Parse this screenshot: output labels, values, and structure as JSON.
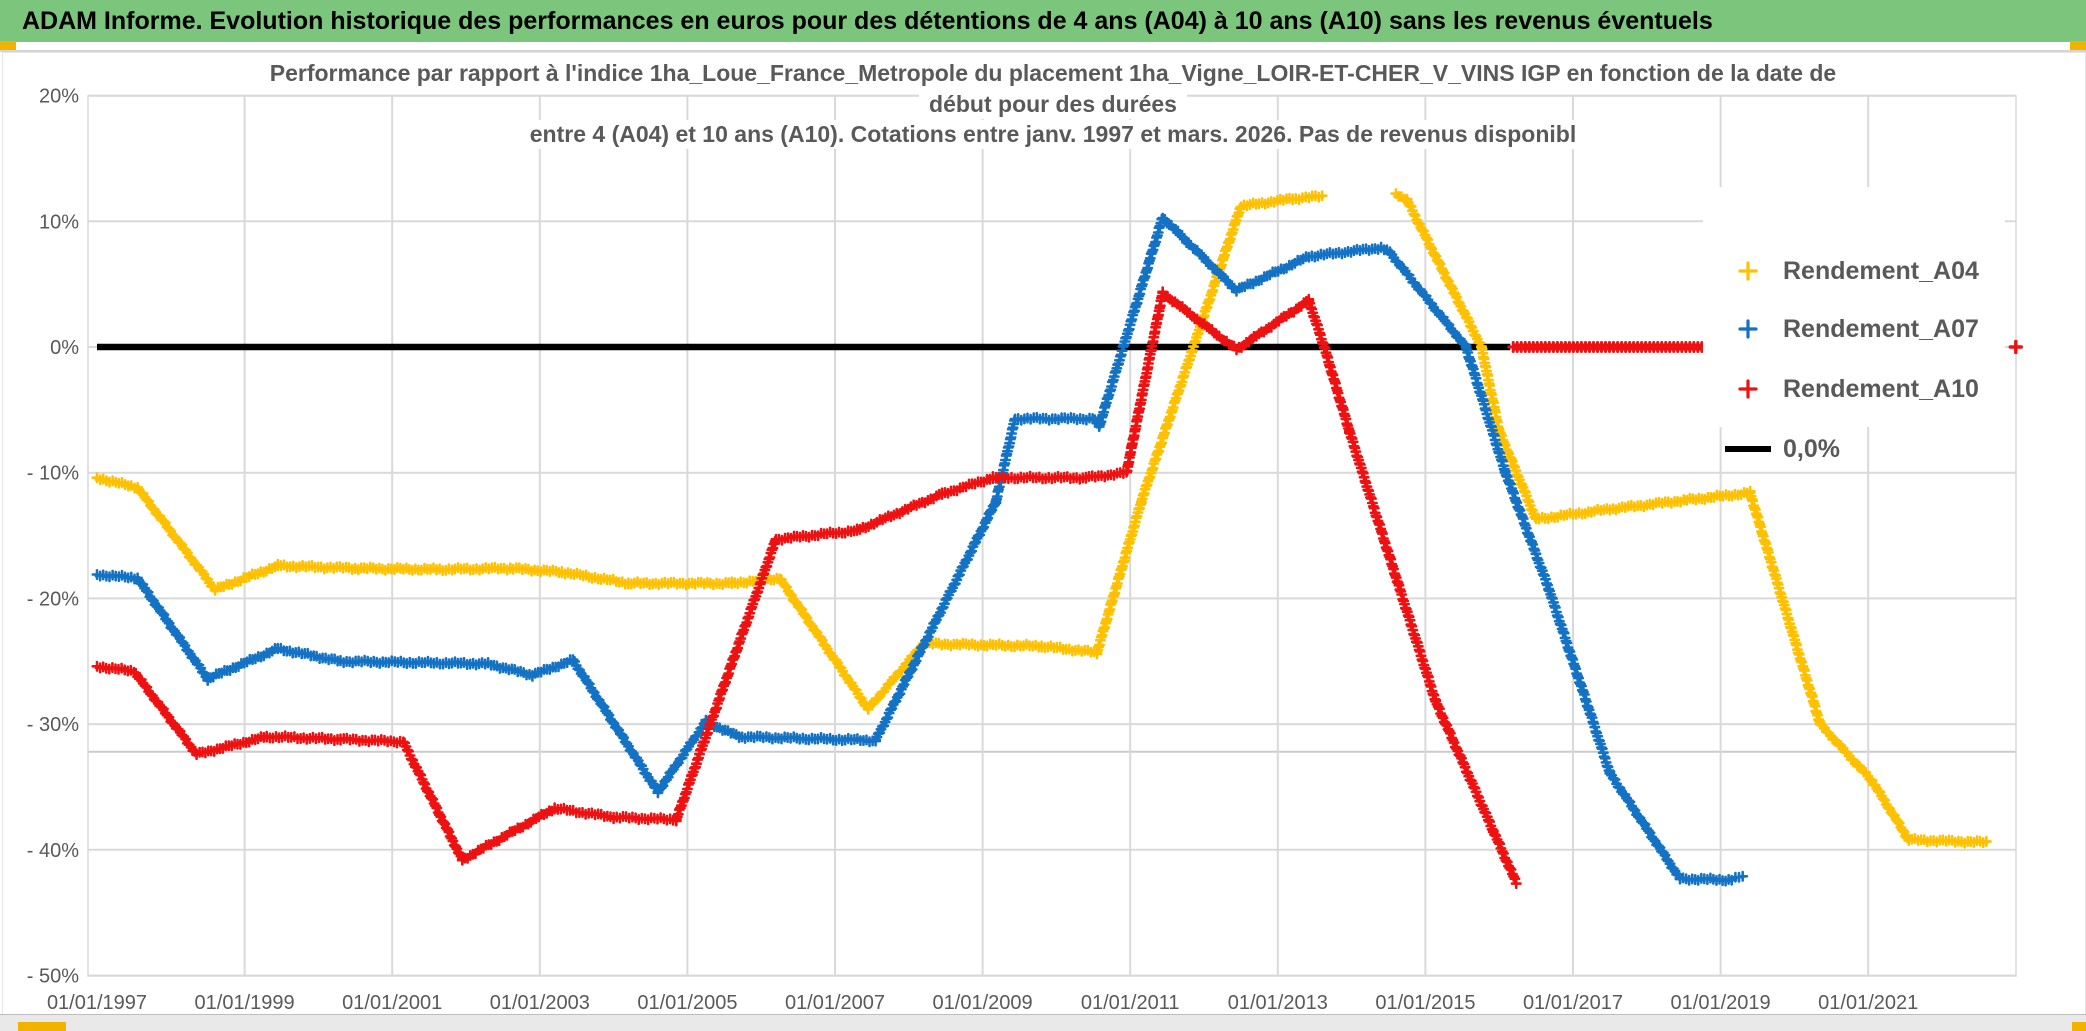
{
  "header": {
    "title": "ADAM Informe. Evolution historique des performances en euros pour des détentions de 4 ans (A04) à 10 ans (A10) sans les revenus éventuels"
  },
  "colors": {
    "header_bar": "#7CC57C",
    "header_text": "#000000",
    "title_text": "#595959",
    "axis_text": "#595959",
    "gridline": "#D9D9D9",
    "extra_reference_line": "#CBCBCB",
    "zero_line": "#000000",
    "selection_handle": "#F2B200",
    "series_a04": "#FFC000",
    "series_a07": "#1472C4",
    "series_a10": "#EE1111"
  },
  "chart_data": {
    "type": "line",
    "title_lines": [
      "Performance par rapport à l'indice 1ha_Loue_France_Metropole  du placement 1ha_Vigne_LOIR-ET-CHER_V_VINS IGP en fonction de la date de",
      "début pour des durées",
      "entre 4 (A04) et 10 ans (A10). Cotations entre janv. 1997 et mars. 2026. Pas de revenus disponibl"
    ],
    "x_axis": {
      "tick_labels": [
        "01/01/1997",
        "01/01/1999",
        "01/01/2001",
        "01/01/2003",
        "01/01/2005",
        "01/01/2007",
        "01/01/2009",
        "01/01/2011",
        "01/01/2013",
        "01/01/2015",
        "01/01/2017",
        "01/01/2019",
        "01/01/2021"
      ],
      "tick_years": [
        1997,
        1999,
        2001,
        2003,
        2005,
        2007,
        2009,
        2011,
        2013,
        2015,
        2017,
        2019,
        2021
      ],
      "range_years": [
        1997,
        2023
      ]
    },
    "y_axis": {
      "tick_labels": [
        "20%",
        "10%",
        "0%",
        "- 10%",
        "- 20%",
        "- 30%",
        "- 40%",
        "- 50%"
      ],
      "tick_values": [
        20,
        10,
        0,
        -10,
        -20,
        -30,
        -40,
        -50
      ],
      "unit": "percent"
    },
    "reference_line_value": -32.2,
    "legend_position": "right",
    "grid": true,
    "legend": [
      {
        "label": "Rendement_A04",
        "color": "#FFC000",
        "marker": "plus"
      },
      {
        "label": "Rendement_A07",
        "color": "#1472C4",
        "marker": "plus"
      },
      {
        "label": "Rendement_A10",
        "color": "#EE1111",
        "marker": "plus"
      },
      {
        "label": "0,0%",
        "color": "#000000",
        "marker": "line"
      }
    ],
    "series": [
      {
        "name": "0,0%",
        "color": "#000000",
        "style": "solid_line",
        "width": 6.5,
        "segments": [
          [
            [
              1997.0,
              0
            ],
            [
              2016.15,
              0
            ]
          ]
        ]
      },
      {
        "name": "Rendement_A04",
        "color": "#FFC000",
        "style": "plus_markers",
        "segments": [
          [
            [
              1997.0,
              -10.4
            ],
            [
              1997.55,
              -11.2
            ],
            [
              1998.6,
              -19.3
            ],
            [
              1999.45,
              -17.4
            ],
            [
              2000.5,
              -17.6
            ],
            [
              2001.6,
              -17.7
            ],
            [
              2002.6,
              -17.6
            ],
            [
              2003.3,
              -17.9
            ],
            [
              2004.2,
              -18.8
            ],
            [
              2005.6,
              -18.8
            ],
            [
              2006.25,
              -18.4
            ],
            [
              2007.45,
              -28.8
            ],
            [
              2008.2,
              -23.6
            ],
            [
              2009.8,
              -23.8
            ],
            [
              2010.55,
              -24.3
            ],
            [
              2011.15,
              -12.3
            ],
            [
              2012.5,
              11.2
            ],
            [
              2013.2,
              11.8
            ],
            [
              2013.6,
              12.0
            ]
          ],
          [
            [
              2014.6,
              12.2
            ],
            [
              2014.75,
              11.7
            ],
            [
              2015.76,
              0.0
            ],
            [
              2016.0,
              -6.7
            ],
            [
              2016.5,
              -13.7
            ],
            [
              2017.5,
              -12.9
            ],
            [
              2018.5,
              -12.2
            ],
            [
              2019.4,
              -11.6
            ],
            [
              2020.35,
              -30.0
            ],
            [
              2021.05,
              -34.5
            ],
            [
              2021.55,
              -39.2
            ],
            [
              2022.6,
              -39.4
            ]
          ]
        ]
      },
      {
        "name": "Rendement_A07",
        "color": "#1472C4",
        "style": "plus_markers",
        "segments": [
          [
            [
              1997.0,
              -18.1
            ],
            [
              1997.55,
              -18.4
            ],
            [
              1998.5,
              -26.4
            ],
            [
              1999.45,
              -24.0
            ],
            [
              2000.3,
              -25.0
            ],
            [
              2002.3,
              -25.2
            ],
            [
              2002.9,
              -26.1
            ],
            [
              2003.45,
              -24.9
            ],
            [
              2004.6,
              -35.4
            ],
            [
              2005.25,
              -29.8
            ],
            [
              2005.7,
              -31.0
            ],
            [
              2007.55,
              -31.3
            ],
            [
              2009.18,
              -12.3
            ],
            [
              2009.44,
              -5.7
            ],
            [
              2010.49,
              -5.7
            ],
            [
              2010.58,
              -6.3
            ],
            [
              2011.44,
              10.3
            ],
            [
              2012.44,
              4.5
            ],
            [
              2013.42,
              7.2
            ],
            [
              2014.4,
              7.9
            ],
            [
              2014.52,
              7.5
            ],
            [
              2015.55,
              0.0
            ],
            [
              2016.08,
              -9.9
            ],
            [
              2016.67,
              -19.2
            ],
            [
              2017.18,
              -28.2
            ],
            [
              2017.5,
              -33.9
            ],
            [
              2018.45,
              -42.3
            ],
            [
              2019.15,
              -42.4
            ],
            [
              2019.3,
              -42.1
            ]
          ]
        ]
      },
      {
        "name": "Rendement_A10",
        "color": "#EE1111",
        "style": "plus_markers",
        "segments": [
          [
            [
              1997.0,
              -25.4
            ],
            [
              1997.5,
              -25.8
            ],
            [
              1998.35,
              -32.4
            ],
            [
              1999.3,
              -31.0
            ],
            [
              2000.3,
              -31.2
            ],
            [
              2001.15,
              -31.4
            ],
            [
              2001.95,
              -40.8
            ],
            [
              2003.2,
              -36.7
            ],
            [
              2004.0,
              -37.4
            ],
            [
              2004.85,
              -37.6
            ],
            [
              2006.2,
              -15.3
            ],
            [
              2007.3,
              -14.6
            ],
            [
              2008.45,
              -11.7
            ],
            [
              2009.14,
              -10.4
            ],
            [
              2010.4,
              -10.4
            ],
            [
              2010.95,
              -10.0
            ],
            [
              2011.44,
              4.3
            ],
            [
              2012.44,
              -0.2
            ],
            [
              2013.42,
              3.7
            ],
            [
              2013.63,
              0.0
            ],
            [
              2013.97,
              -6.7
            ],
            [
              2015.14,
              -28.2
            ],
            [
              2015.92,
              -38.5
            ],
            [
              2016.23,
              -42.6
            ]
          ]
        ],
        "zero_segment": [
          [
            2016.19,
            0
          ],
          [
            2018.8,
            0
          ]
        ],
        "isolated_points": [
          [
            2023.0,
            0
          ]
        ]
      }
    ]
  }
}
